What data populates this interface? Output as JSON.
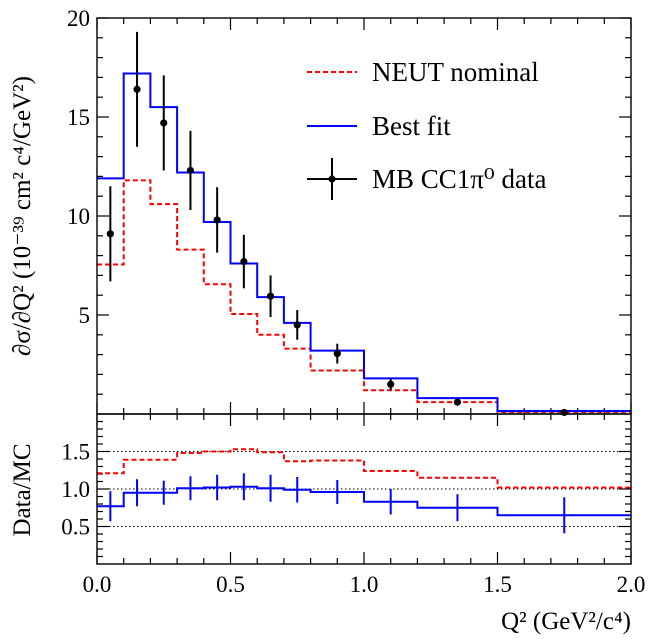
{
  "chart_data": [
    {
      "type": "step-line",
      "panel": "main",
      "xlabel": "Q² (GeV²/c⁴)",
      "ylabel": "∂σ/∂Q² (10⁻³⁹ cm² c⁴/GeV²)",
      "xlim": [
        0.0,
        2.0
      ],
      "ylim": [
        0,
        20
      ],
      "x_ticks": [
        "0.0",
        "0.5",
        "1.0",
        "1.5",
        "2.0"
      ],
      "y_ticks": [
        "5",
        "10",
        "15",
        "20"
      ],
      "y_tick_values": [
        5,
        10,
        15,
        20
      ],
      "bin_edges": [
        0.0,
        0.1,
        0.2,
        0.3,
        0.4,
        0.5,
        0.6,
        0.7,
        0.8,
        1.0,
        1.2,
        1.5,
        2.0
      ],
      "legend_position": "top-right",
      "series": [
        {
          "name": "NEUT nominal",
          "style": "dashed-step",
          "color": "#ff0000",
          "values": [
            7.55,
            11.8,
            10.6,
            8.3,
            6.55,
            5.05,
            4.0,
            3.3,
            2.2,
            1.2,
            0.6,
            0.1
          ]
        },
        {
          "name": "Best fit",
          "style": "solid-step",
          "color": "#0000ff",
          "values": [
            11.9,
            17.2,
            15.5,
            12.2,
            9.7,
            7.6,
            5.9,
            4.6,
            3.2,
            1.8,
            0.8,
            0.15
          ]
        },
        {
          "name": "MB CC1π⁰ data",
          "style": "points-with-errors",
          "color": "#000000",
          "x": [
            0.05,
            0.15,
            0.25,
            0.35,
            0.45,
            0.55,
            0.65,
            0.75,
            0.9,
            1.1,
            1.35,
            1.75
          ],
          "values": [
            9.1,
            16.4,
            14.7,
            12.3,
            9.8,
            7.7,
            5.95,
            4.5,
            3.05,
            1.5,
            0.6,
            0.08
          ],
          "errors": [
            2.4,
            2.9,
            2.4,
            2.0,
            1.65,
            1.35,
            1.05,
            0.75,
            0.5,
            0.3,
            0.15,
            0.05
          ]
        }
      ]
    },
    {
      "type": "step-line",
      "panel": "ratio",
      "xlabel": "Q² (GeV²/c⁴)",
      "ylabel": "Data/MC",
      "xlim": [
        0.0,
        2.0
      ],
      "ylim": [
        0.0,
        2.0
      ],
      "y_ticks": [
        "0.5",
        "1.0",
        "1.5"
      ],
      "y_tick_values": [
        0.5,
        1.0,
        1.5
      ],
      "bin_edges": [
        0.0,
        0.1,
        0.2,
        0.3,
        0.4,
        0.5,
        0.6,
        0.7,
        0.8,
        1.0,
        1.2,
        1.5,
        2.0
      ],
      "series": [
        {
          "name": "NEUT nominal",
          "style": "dashed-step",
          "color": "#ff0000",
          "values": [
            1.21,
            1.39,
            1.39,
            1.48,
            1.5,
            1.53,
            1.49,
            1.37,
            1.38,
            1.24,
            1.15,
            1.02
          ]
        },
        {
          "name": "Best fit",
          "style": "solid-step",
          "color": "#0000ff",
          "values": [
            0.77,
            0.95,
            0.95,
            1.01,
            1.02,
            1.03,
            1.01,
            0.99,
            0.96,
            0.83,
            0.75,
            0.65
          ],
          "errors": [
            0.2,
            0.18,
            0.16,
            0.16,
            0.17,
            0.18,
            0.18,
            0.17,
            0.16,
            0.17,
            0.18,
            0.24
          ]
        }
      ]
    }
  ],
  "legend": [
    {
      "label": "NEUT nominal",
      "color": "#ff0000",
      "style": "dashed"
    },
    {
      "label": "Best fit",
      "color": "#0000ff",
      "style": "solid"
    },
    {
      "label": "MB CC1π⁰ data",
      "color": "#000000",
      "style": "marker"
    }
  ]
}
